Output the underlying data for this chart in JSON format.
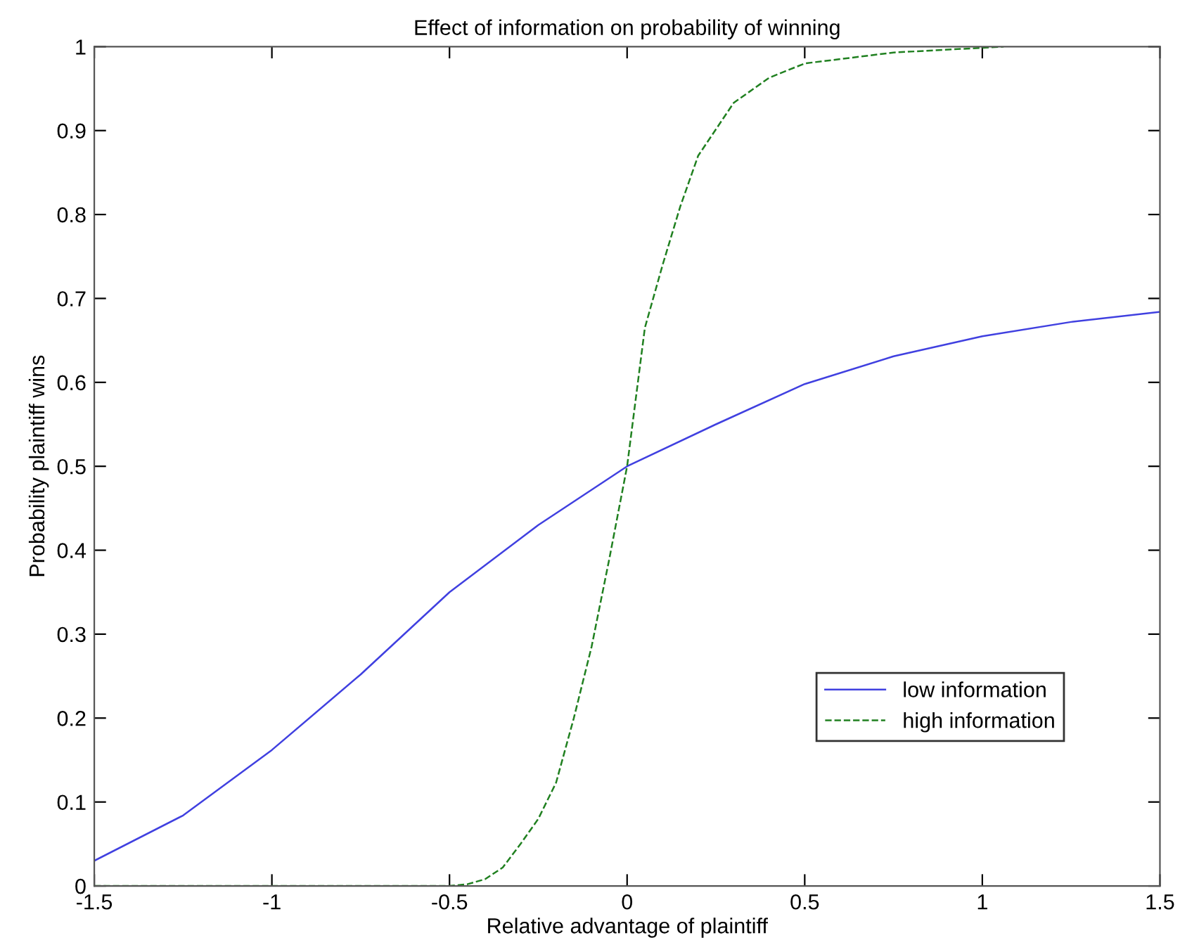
{
  "chart_data": {
    "type": "line",
    "title": "Effect of information on probability of winning",
    "xlabel": "Relative advantage of plaintiff",
    "ylabel": "Probability plaintiff wins",
    "series": [
      {
        "name": "low information",
        "color": "#4040e0",
        "line_style": "solid",
        "x": [
          -1.5,
          -1.25,
          -1,
          -0.75,
          -0.5,
          -0.25,
          0,
          0.25,
          0.5,
          0.75,
          1,
          1.25,
          1.5
        ],
        "values": [
          0.03,
          0.084,
          0.162,
          0.252,
          0.35,
          0.43,
          0.5,
          0.55,
          0.598,
          0.631,
          0.655,
          0.672,
          0.684
        ]
      },
      {
        "name": "high information",
        "color": "#208020",
        "line_style": "dashed",
        "x": [
          -1.5,
          -0.5,
          -0.45,
          -0.4,
          -0.35,
          -0.3,
          -0.25,
          -0.2,
          -0.15,
          -0.1,
          -0.05,
          0,
          0.05,
          0.1,
          0.15,
          0.2,
          0.3,
          0.4,
          0.5,
          0.75,
          1.06
        ],
        "values": [
          0,
          0,
          0.002,
          0.008,
          0.022,
          0.05,
          0.08,
          0.123,
          0.2,
          0.285,
          0.39,
          0.5,
          0.665,
          0.74,
          0.81,
          0.87,
          0.933,
          0.963,
          0.98,
          0.993,
          1.0
        ]
      }
    ],
    "xlim": [
      -1.5,
      1.5
    ],
    "xticks": [
      -1.5,
      -1,
      -0.5,
      0,
      0.5,
      1,
      1.5
    ],
    "ylim": [
      0,
      1
    ],
    "yticks": [
      0,
      0.1,
      0.2,
      0.3,
      0.4,
      0.5,
      0.6,
      0.7,
      0.8,
      0.9,
      1
    ],
    "grid": false,
    "legend": "bottom right",
    "marker": "none"
  }
}
